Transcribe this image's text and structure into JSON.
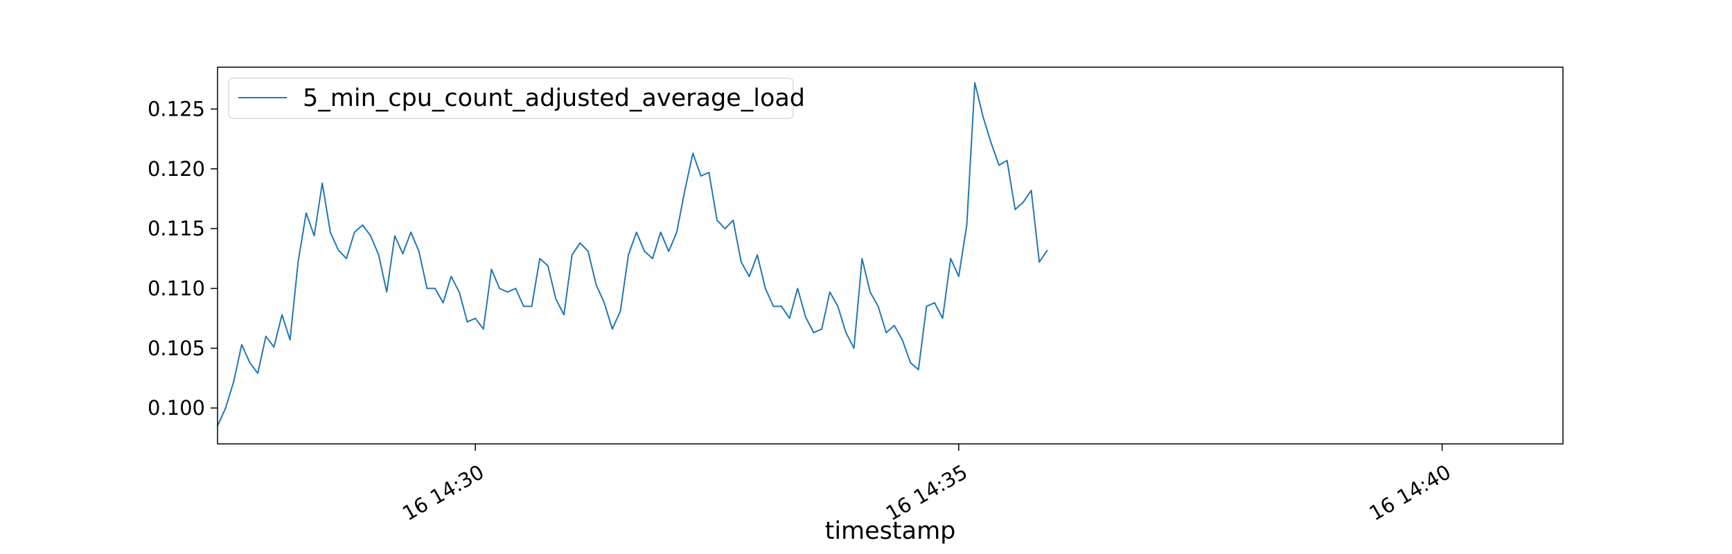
{
  "chart_data": {
    "type": "line",
    "title": "",
    "xlabel": "timestamp",
    "ylabel": "",
    "x_start": "16 14:27:20",
    "x_step_seconds": 5,
    "xlim": [
      "16 14:27:20",
      "16 14:41:15"
    ],
    "ylim": [
      0.097,
      0.1285
    ],
    "x_ticks": [
      {
        "time": "16 14:30:00",
        "label": "16 14:30"
      },
      {
        "time": "16 14:35:00",
        "label": "16 14:35"
      },
      {
        "time": "16 14:40:00",
        "label": "16 14:40"
      }
    ],
    "y_ticks": [
      {
        "value": 0.1,
        "label": "0.100"
      },
      {
        "value": 0.105,
        "label": "0.105"
      },
      {
        "value": 0.11,
        "label": "0.110"
      },
      {
        "value": 0.115,
        "label": "0.115"
      },
      {
        "value": 0.12,
        "label": "0.120"
      },
      {
        "value": 0.125,
        "label": "0.125"
      }
    ],
    "grid": false,
    "legend": "top-left",
    "series": [
      {
        "name": "5_min_cpu_count_adjusted_average_load",
        "color": "#1f77b4",
        "values": [
          0.0985,
          0.1,
          0.1022,
          0.1053,
          0.1038,
          0.1029,
          0.106,
          0.1051,
          0.1078,
          0.1057,
          0.1122,
          0.1163,
          0.1144,
          0.1188,
          0.1147,
          0.1132,
          0.1125,
          0.1147,
          0.1153,
          0.1144,
          0.1128,
          0.1097,
          0.1144,
          0.1129,
          0.1147,
          0.1131,
          0.11,
          0.11,
          0.1088,
          0.111,
          0.1097,
          0.1072,
          0.1075,
          0.1066,
          0.1116,
          0.11,
          0.1097,
          0.11,
          0.1085,
          0.1085,
          0.1125,
          0.1119,
          0.1091,
          0.1078,
          0.1128,
          0.1138,
          0.1131,
          0.1103,
          0.1088,
          0.1066,
          0.1081,
          0.1128,
          0.1147,
          0.1131,
          0.1125,
          0.1147,
          0.1131,
          0.1147,
          0.1182,
          0.1213,
          0.1194,
          0.1197,
          0.1157,
          0.115,
          0.1157,
          0.1122,
          0.111,
          0.1128,
          0.11,
          0.1085,
          0.1085,
          0.1075,
          0.11,
          0.1076,
          0.1063,
          0.1066,
          0.1097,
          0.1085,
          0.1063,
          0.105,
          0.1125,
          0.1097,
          0.1085,
          0.1063,
          0.1069,
          0.1057,
          0.1038,
          0.1032,
          0.1085,
          0.1088,
          0.1075,
          0.1125,
          0.111,
          0.1153,
          0.1272,
          0.1244,
          0.1222,
          0.1203,
          0.1207,
          0.1166,
          0.1172,
          0.1182,
          0.1122,
          0.1132
        ]
      }
    ]
  }
}
